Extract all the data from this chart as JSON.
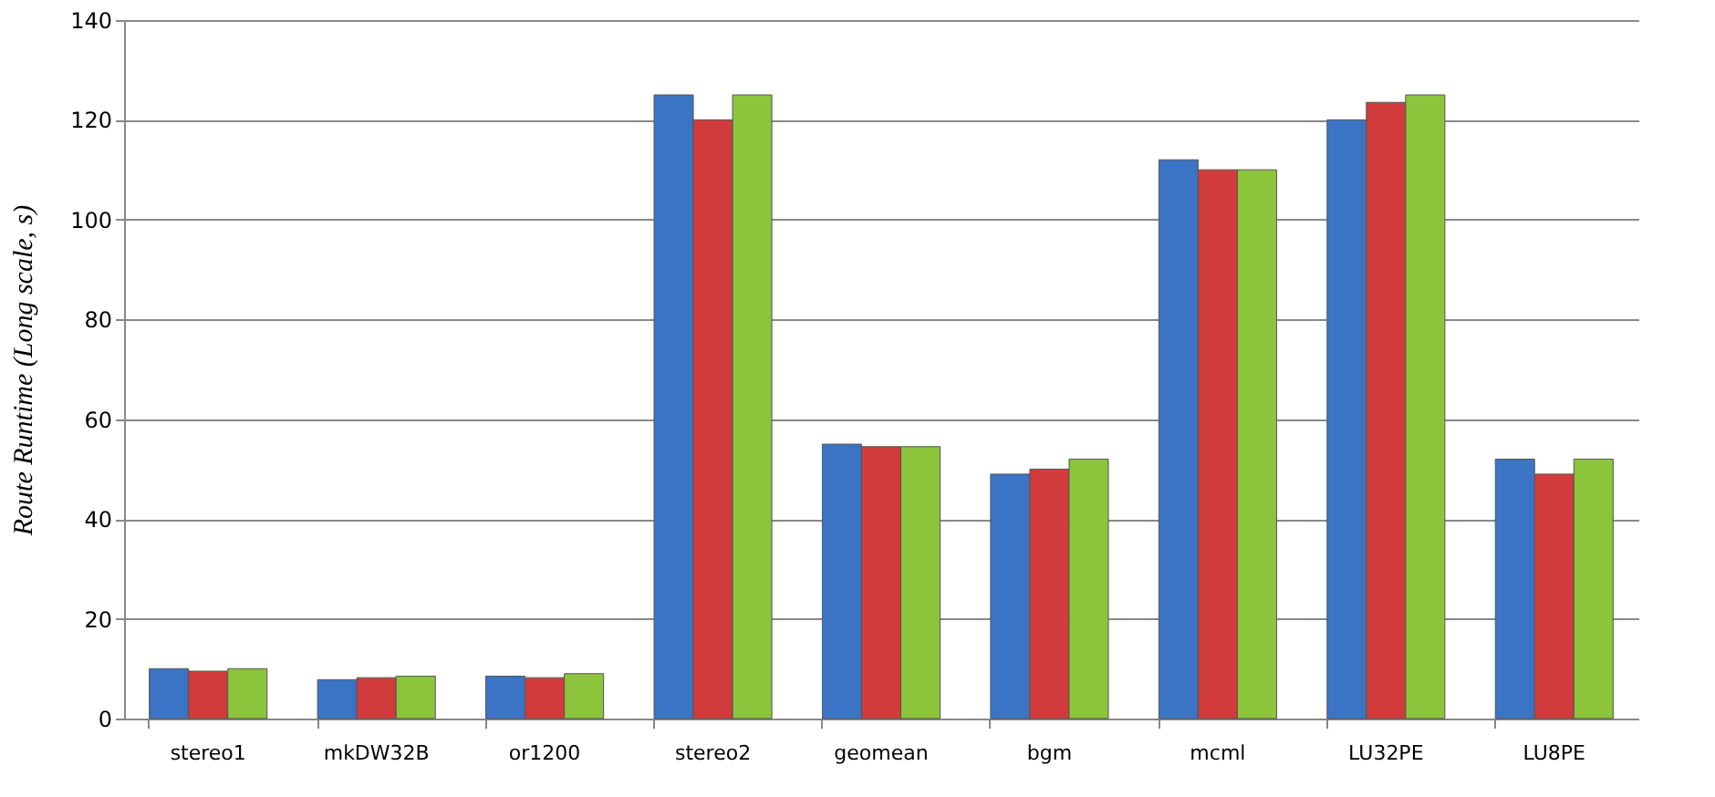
{
  "chart_data": {
    "type": "bar",
    "ylabel": "Route Runtime (Long scale, s)",
    "categories": [
      "stereo1",
      "mkDW32B",
      "or1200",
      "stereo2",
      "geomean",
      "bgm",
      "mcml",
      "LU32PE",
      "LU8PE"
    ],
    "series": [
      {
        "color": "#3b74c4",
        "values": [
          10,
          7.8,
          8.5,
          125,
          55,
          49,
          112,
          120,
          52
        ]
      },
      {
        "color": "#d23b3b",
        "values": [
          9.5,
          8.2,
          8.2,
          120,
          54.5,
          50,
          110,
          123.5,
          49
        ]
      },
      {
        "color": "#8cc43c",
        "values": [
          10,
          8.5,
          9,
          125,
          54.5,
          52,
          110,
          125,
          52
        ]
      }
    ],
    "ylim": [
      0,
      140
    ],
    "yticks": [
      0,
      20,
      40,
      60,
      80,
      100,
      120,
      140
    ],
    "grid": "y",
    "legend": false
  }
}
